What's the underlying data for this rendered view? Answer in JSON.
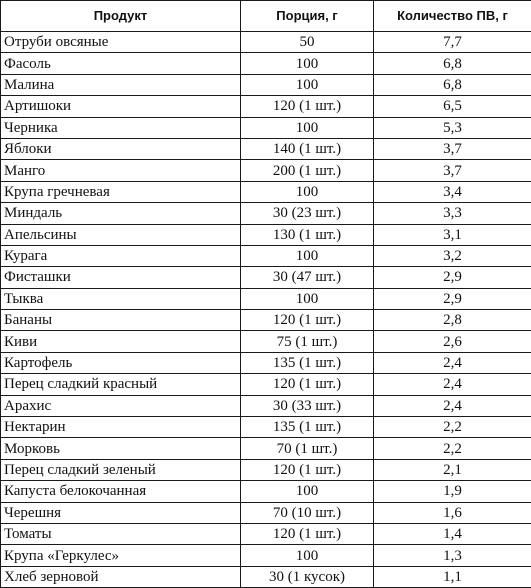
{
  "table": {
    "headers": [
      "Продукт",
      "Порция, г",
      "Количество ПВ, г"
    ],
    "rows": [
      [
        "Отруби овсяные",
        "50",
        "7,7"
      ],
      [
        "Фасоль",
        "100",
        "6,8"
      ],
      [
        "Малина",
        "100",
        "6,8"
      ],
      [
        "Артишоки",
        "120 (1 шт.)",
        "6,5"
      ],
      [
        "Черника",
        "100",
        "5,3"
      ],
      [
        "Яблоки",
        "140 (1 шт.)",
        "3,7"
      ],
      [
        "Манго",
        "200 (1 шт.)",
        "3,7"
      ],
      [
        "Крупа гречневая",
        "100",
        "3,4"
      ],
      [
        "Миндаль",
        "30 (23 шт.)",
        "3,3"
      ],
      [
        "Апельсины",
        "130 (1 шт.)",
        "3,1"
      ],
      [
        "Курага",
        "100",
        "3,2"
      ],
      [
        "Фисташки",
        "30 (47 шт.)",
        "2,9"
      ],
      [
        "Тыква",
        "100",
        "2,9"
      ],
      [
        "Бананы",
        "120 (1 шт.)",
        "2,8"
      ],
      [
        "Киви",
        "75 (1 шт.)",
        "2,6"
      ],
      [
        "Картофель",
        "135 (1 шт.)",
        "2,4"
      ],
      [
        "Перец сладкий красный",
        "120 (1 шт.)",
        "2,4"
      ],
      [
        "Арахис",
        "30 (33 шт.)",
        "2,4"
      ],
      [
        "Нектарин",
        "135 (1 шт.)",
        "2,2"
      ],
      [
        "Морковь",
        "70 (1 шт.)",
        "2,2"
      ],
      [
        "Перец сладкий зеленый",
        "120 (1 шт.)",
        "2,1"
      ],
      [
        "Капуста белокочанная",
        "100",
        "1,9"
      ],
      [
        "Черешня",
        "70 (10 шт.)",
        "1,6"
      ],
      [
        "Томаты",
        "120 (1 шт.)",
        "1,4"
      ],
      [
        "Крупа «Геркулес»",
        "100",
        "1,3"
      ],
      [
        "Хлеб зерновой",
        "30 (1 кусок)",
        "1,1"
      ]
    ]
  }
}
